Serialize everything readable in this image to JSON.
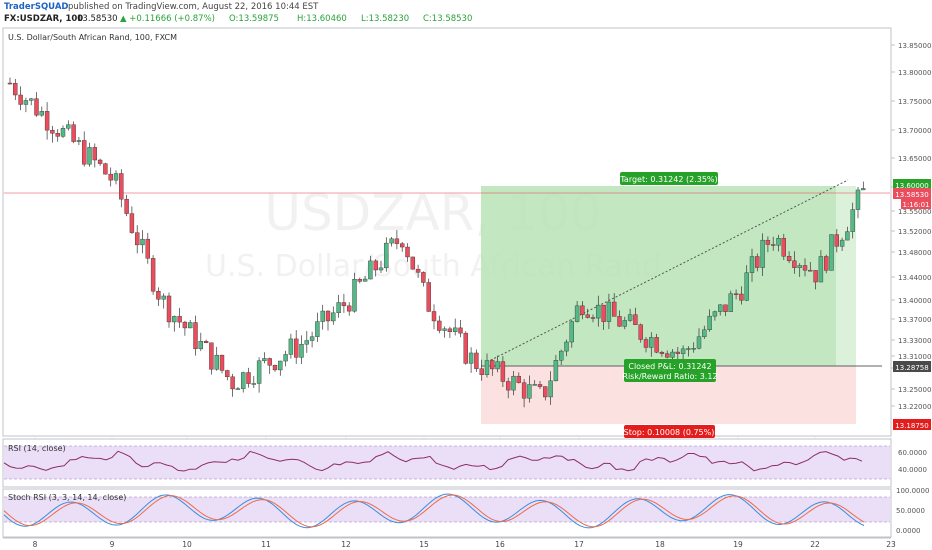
{
  "header": {
    "brand": "TraderSQUAD",
    "published_text": "published on TradingView.com, August 22, 2016 10:44 EST",
    "symbol_line": "FX:USDZAR, 100",
    "last_price": "13.58530",
    "change": "▲ +0.11666 (+0.87%)",
    "o": "O:13.59875",
    "h": "H:13.60460",
    "l": "L:13.58230",
    "c": "C:13.58530"
  },
  "main_pane": {
    "title": "U.S. Dollar/South African Rand, 100, FXCM",
    "watermark_symbol": "USDZAR, 100",
    "watermark_name": "U.S. Dollar/South African Rand"
  },
  "position_tool": {
    "target_label": "Target: 0.31242 (2.35%)",
    "stop_label": "Stop: 0.10008 (0.75%)",
    "closed_pnl": "Closed P&L: 0.31242",
    "rr_ratio": "Risk/Reward Ratio: 3.12"
  },
  "price_axis": {
    "tick_labels": [
      "13.85000",
      "13.80000",
      "13.75000",
      "13.70000",
      "13.65000",
      "13.60000",
      "13.55000",
      "13.52000",
      "13.48000",
      "13.44000",
      "13.40000",
      "13.37000",
      "13.33000",
      "13.31000",
      "13.29000",
      "13.25000",
      "13.22000"
    ],
    "current_price_tag": "13.58530",
    "countdown_tag": "1:16:01",
    "target_tag": "13.60000",
    "entry_tag": "13.28758",
    "stop_tag": "13.18750"
  },
  "time_axis": {
    "labels": [
      "8",
      "9",
      "10",
      "11",
      "12",
      "15",
      "16",
      "17",
      "18",
      "19",
      "22",
      "23"
    ]
  },
  "rsi_pane": {
    "title": "RSI (14, close)",
    "tick_labels": [
      "60.0000",
      "40.0000"
    ]
  },
  "stoch_pane": {
    "title": "Stoch RSI (3, 3, 14, 14, close)",
    "tick_labels": [
      "100.0000",
      "50.0000",
      "0.0000"
    ]
  },
  "colors": {
    "up_candle": "#53b987",
    "down_candle": "#eb4d5c",
    "target_zone": "#b9e3b6",
    "stop_zone": "#fbd9d9",
    "rsi_line": "#8d2c68",
    "stoch_k": "#3c8ddc",
    "stoch_d": "#ef6b4a",
    "band_fill": "#e8dcf6",
    "tag_green": "#27a228",
    "tag_red": "#e41c1c",
    "tag_dark": "#4a4a4a"
  },
  "chart_data": {
    "type": "candlestick",
    "x_axis": [
      "8",
      "9",
      "10",
      "11",
      "12",
      "15",
      "16",
      "17",
      "18",
      "19",
      "22",
      "23"
    ],
    "ylim": [
      13.18,
      13.87
    ],
    "note_series": "approximate close path",
    "close_path": [
      {
        "x": "8",
        "y": 13.8
      },
      {
        "x": "9",
        "y": 13.62
      },
      {
        "x": "10",
        "y": 13.4
      },
      {
        "x": "10",
        "y": 13.25
      },
      {
        "x": "11",
        "y": 13.32
      },
      {
        "x": "12",
        "y": 13.4
      },
      {
        "x": "12",
        "y": 13.52
      },
      {
        "x": "15",
        "y": 13.4
      },
      {
        "x": "15",
        "y": 13.29
      },
      {
        "x": "16",
        "y": 13.22
      },
      {
        "x": "17",
        "y": 13.4
      },
      {
        "x": "18",
        "y": 13.3
      },
      {
        "x": "19",
        "y": 13.42
      },
      {
        "x": "19",
        "y": 13.52
      },
      {
        "x": "22",
        "y": 13.45
      },
      {
        "x": "22",
        "y": 13.6
      }
    ],
    "rsi_range": [
      20,
      80
    ],
    "stoch_range": [
      0,
      100
    ]
  }
}
